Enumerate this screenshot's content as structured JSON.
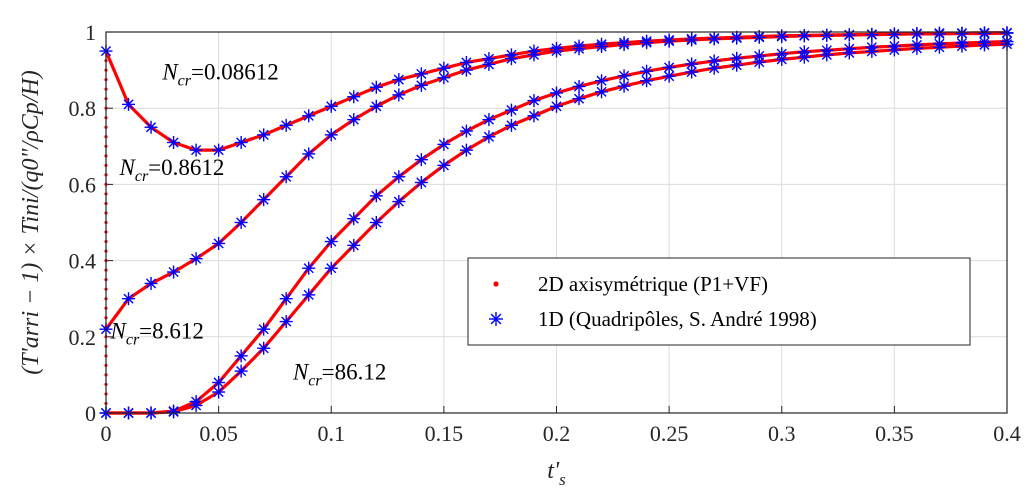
{
  "chart_data": {
    "type": "line",
    "xlabel": "t's",
    "ylabel": "(T'arri − 1) × Tini/(q0\"/ρCp/H)",
    "xlim": [
      0,
      0.4
    ],
    "ylim": [
      0,
      1
    ],
    "xticks": [
      "0",
      "0.05",
      "0.1",
      "0.15",
      "0.2",
      "0.25",
      "0.3",
      "0.35",
      "0.4"
    ],
    "yticks": [
      "0",
      "0.2",
      "0.4",
      "0.6",
      "0.8",
      "1"
    ],
    "grid": true,
    "legend_position": "center-right",
    "colors": {
      "line": "#ff0000",
      "marker": "#0000ff",
      "grid": "#dcdcdc"
    },
    "legend": [
      {
        "label": "2D axisymétrique (P1+VF)",
        "marker": "dot",
        "color": "#ff0000"
      },
      {
        "label": "1D (Quadripôles, S. André 1998)",
        "marker": "asterisk",
        "color": "#0000ff"
      }
    ],
    "annotations": [
      {
        "text": "Ncr=0.08612",
        "series": 0
      },
      {
        "text": "Ncr=0.8612",
        "series": 1
      },
      {
        "text": "Ncr=8.612",
        "series": 2
      },
      {
        "text": "Ncr=86.12",
        "series": 3
      }
    ],
    "series": [
      {
        "name": "Ncr=0.08612",
        "x": [
          0,
          0.01,
          0.02,
          0.03,
          0.04,
          0.05,
          0.06,
          0.07,
          0.08,
          0.09,
          0.1,
          0.11,
          0.12,
          0.13,
          0.14,
          0.15,
          0.16,
          0.17,
          0.18,
          0.19,
          0.2,
          0.21,
          0.22,
          0.23,
          0.24,
          0.25,
          0.26,
          0.27,
          0.28,
          0.29,
          0.3,
          0.31,
          0.32,
          0.33,
          0.34,
          0.35,
          0.36,
          0.37,
          0.38,
          0.39,
          0.4
        ],
        "y": [
          0.95,
          0.81,
          0.75,
          0.71,
          0.69,
          0.69,
          0.71,
          0.73,
          0.755,
          0.78,
          0.805,
          0.83,
          0.855,
          0.875,
          0.89,
          0.905,
          0.92,
          0.93,
          0.94,
          0.95,
          0.957,
          0.963,
          0.968,
          0.972,
          0.976,
          0.979,
          0.982,
          0.984,
          0.986,
          0.988,
          0.99,
          0.991,
          0.992,
          0.993,
          0.994,
          0.995,
          0.996,
          0.997,
          0.997,
          0.998,
          0.998
        ]
      },
      {
        "name": "Ncr=0.8612",
        "x": [
          0,
          0.01,
          0.02,
          0.03,
          0.04,
          0.05,
          0.06,
          0.07,
          0.08,
          0.09,
          0.1,
          0.11,
          0.12,
          0.13,
          0.14,
          0.15,
          0.16,
          0.17,
          0.18,
          0.19,
          0.2,
          0.21,
          0.22,
          0.23,
          0.24,
          0.25,
          0.26,
          0.27,
          0.28,
          0.29,
          0.3,
          0.31,
          0.32,
          0.33,
          0.34,
          0.35,
          0.36,
          0.37,
          0.38,
          0.39,
          0.4
        ],
        "y": [
          0.22,
          0.3,
          0.34,
          0.37,
          0.405,
          0.445,
          0.5,
          0.56,
          0.62,
          0.68,
          0.73,
          0.77,
          0.805,
          0.835,
          0.86,
          0.88,
          0.9,
          0.915,
          0.93,
          0.94,
          0.95,
          0.956,
          0.962,
          0.967,
          0.972,
          0.976,
          0.979,
          0.982,
          0.984,
          0.986,
          0.988,
          0.99,
          0.991,
          0.992,
          0.993,
          0.994,
          0.995,
          0.995,
          0.996,
          0.996,
          0.997
        ]
      },
      {
        "name": "Ncr=8.612",
        "x": [
          0,
          0.01,
          0.02,
          0.03,
          0.04,
          0.05,
          0.06,
          0.07,
          0.08,
          0.09,
          0.1,
          0.11,
          0.12,
          0.13,
          0.14,
          0.15,
          0.16,
          0.17,
          0.18,
          0.19,
          0.2,
          0.21,
          0.22,
          0.23,
          0.24,
          0.25,
          0.26,
          0.27,
          0.28,
          0.29,
          0.3,
          0.31,
          0.32,
          0.33,
          0.34,
          0.35,
          0.36,
          0.37,
          0.38,
          0.39,
          0.4
        ],
        "y": [
          0.0,
          0.0,
          0.0,
          0.005,
          0.03,
          0.08,
          0.15,
          0.22,
          0.3,
          0.38,
          0.45,
          0.51,
          0.57,
          0.62,
          0.665,
          0.705,
          0.74,
          0.77,
          0.795,
          0.82,
          0.84,
          0.857,
          0.872,
          0.885,
          0.897,
          0.907,
          0.916,
          0.924,
          0.931,
          0.937,
          0.943,
          0.948,
          0.952,
          0.956,
          0.96,
          0.963,
          0.966,
          0.969,
          0.971,
          0.973,
          0.975
        ]
      },
      {
        "name": "Ncr=86.12",
        "x": [
          0,
          0.01,
          0.02,
          0.03,
          0.04,
          0.05,
          0.06,
          0.07,
          0.08,
          0.09,
          0.1,
          0.11,
          0.12,
          0.13,
          0.14,
          0.15,
          0.16,
          0.17,
          0.18,
          0.19,
          0.2,
          0.21,
          0.22,
          0.23,
          0.24,
          0.25,
          0.26,
          0.27,
          0.28,
          0.29,
          0.3,
          0.31,
          0.32,
          0.33,
          0.34,
          0.35,
          0.36,
          0.37,
          0.38,
          0.39,
          0.4
        ],
        "y": [
          0.0,
          0.0,
          0.0,
          0.003,
          0.02,
          0.055,
          0.11,
          0.17,
          0.24,
          0.31,
          0.38,
          0.44,
          0.5,
          0.555,
          0.605,
          0.65,
          0.69,
          0.725,
          0.755,
          0.78,
          0.805,
          0.825,
          0.843,
          0.858,
          0.872,
          0.884,
          0.895,
          0.905,
          0.913,
          0.921,
          0.928,
          0.934,
          0.94,
          0.945,
          0.949,
          0.953,
          0.957,
          0.96,
          0.963,
          0.966,
          0.968
        ]
      }
    ]
  }
}
